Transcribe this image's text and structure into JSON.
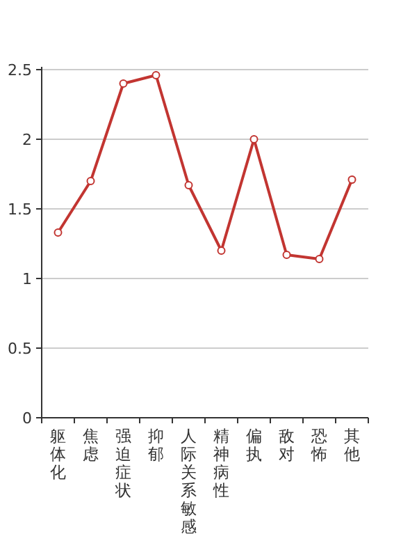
{
  "chart_data": {
    "type": "line",
    "categories": [
      "躯体化",
      "焦虑",
      "强迫症状",
      "抑郁",
      "人际关系敏感",
      "精神病性",
      "偏执",
      "敌对",
      "恐怖",
      "其他"
    ],
    "series": [
      {
        "color": "#c23531",
        "values": [
          1.33,
          1.7,
          2.4,
          2.46,
          1.67,
          1.2,
          2.0,
          1.17,
          1.14,
          1.71
        ]
      }
    ],
    "ylim": [
      0,
      2.5
    ],
    "yticks": [
      0,
      0.5,
      1,
      1.5,
      2,
      2.5
    ],
    "grid": "y",
    "marker": "circle",
    "line_style": "solid"
  }
}
